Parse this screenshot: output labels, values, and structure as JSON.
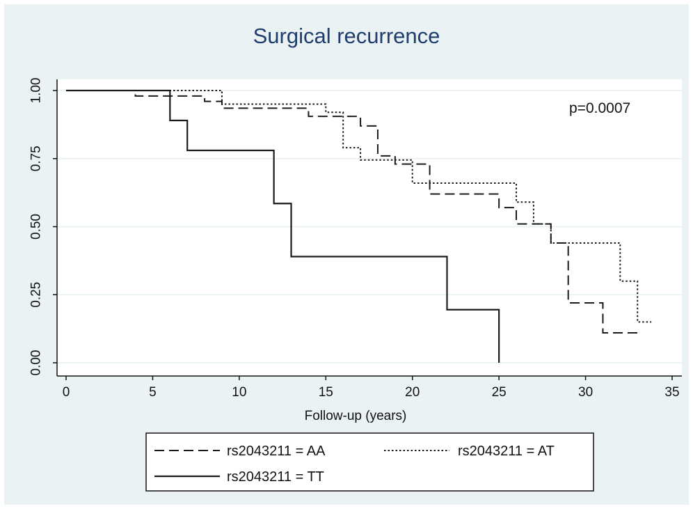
{
  "chart_data": {
    "type": "line",
    "step": true,
    "title": "Surgical recurrence",
    "xlabel": "Follow-up (years)",
    "ylabel": "",
    "xlim": [
      0,
      35
    ],
    "ylim": [
      0,
      1
    ],
    "xticks": [
      0,
      5,
      10,
      15,
      20,
      25,
      30,
      35
    ],
    "yticks": [
      0,
      0.25,
      0.5,
      0.75,
      1
    ],
    "ytick_labels": [
      "0.00",
      "0.25",
      "0.50",
      "0.75",
      "1.00"
    ],
    "grid": true,
    "legend_position": "bottom",
    "annotation": "p=0.0007",
    "series": [
      {
        "name": "rs2043211 = AA",
        "style": "dashed",
        "points": [
          [
            0,
            1.0
          ],
          [
            4,
            0.98
          ],
          [
            8,
            0.96
          ],
          [
            9,
            0.935
          ],
          [
            14,
            0.905
          ],
          [
            16,
            0.905
          ],
          [
            17,
            0.87
          ],
          [
            18,
            0.76
          ],
          [
            19,
            0.73
          ],
          [
            21,
            0.62
          ],
          [
            25,
            0.57
          ],
          [
            26,
            0.51
          ],
          [
            28,
            0.44
          ],
          [
            29,
            0.22
          ],
          [
            31,
            0.11
          ],
          [
            33,
            0.11
          ]
        ]
      },
      {
        "name": "rs2043211 = AT",
        "style": "dotted",
        "points": [
          [
            0,
            1.0
          ],
          [
            9,
            0.95
          ],
          [
            15,
            0.92
          ],
          [
            16,
            0.79
          ],
          [
            17,
            0.745
          ],
          [
            19,
            0.745
          ],
          [
            20,
            0.66
          ],
          [
            26,
            0.59
          ],
          [
            27,
            0.51
          ],
          [
            28,
            0.44
          ],
          [
            32,
            0.3
          ],
          [
            33,
            0.15
          ],
          [
            33.8,
            0.15
          ]
        ]
      },
      {
        "name": "rs2043211 = TT",
        "style": "solid",
        "points": [
          [
            0,
            1.0
          ],
          [
            6,
            0.89
          ],
          [
            7,
            0.78
          ],
          [
            12,
            0.585
          ],
          [
            13,
            0.39
          ],
          [
            22,
            0.195
          ],
          [
            25,
            0.0
          ]
        ]
      }
    ]
  }
}
